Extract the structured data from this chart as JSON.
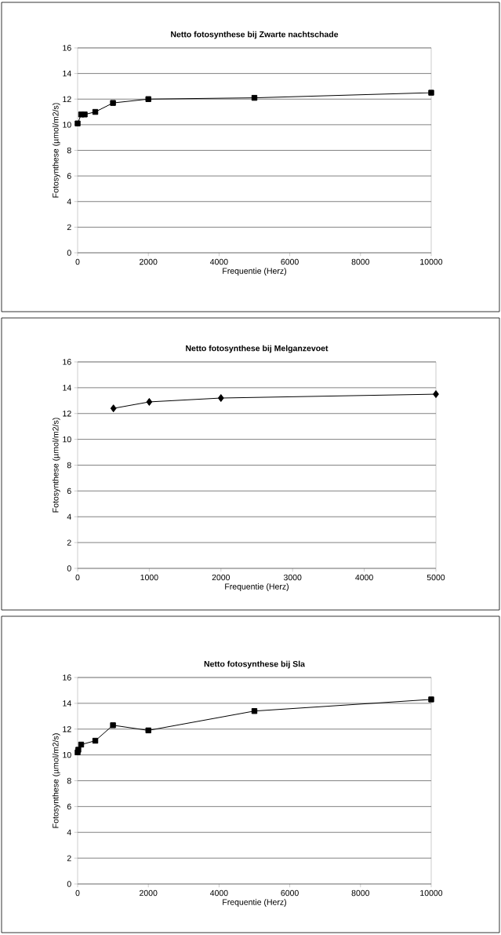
{
  "chart_data": [
    {
      "type": "line",
      "title": "Netto fotosynthese bij Zwarte nachtschade",
      "xlabel": "Frequentie (Herz)",
      "ylabel": "Fotosynthese (µmol/m2/s)",
      "x": [
        0,
        100,
        200,
        500,
        1000,
        2000,
        5000,
        10000
      ],
      "series": [
        {
          "color": "#000000",
          "values": [
            10.1,
            10.8,
            10.8,
            11.0,
            11.7,
            12.0,
            12.1,
            12.5
          ]
        }
      ],
      "xlim": [
        0,
        10000
      ],
      "xticks": [
        0,
        2000,
        4000,
        6000,
        8000,
        10000
      ],
      "ylim": [
        0,
        16
      ],
      "yticks": [
        0,
        2,
        4,
        6,
        8,
        10,
        12,
        14,
        16
      ],
      "grid": "y",
      "marker": "square"
    },
    {
      "type": "line",
      "title": "Netto fotosynthese bij Melganzevoet",
      "xlabel": "Frequentie (Herz)",
      "ylabel": "Fotosynthese (µmol/m2/s)",
      "x": [
        500,
        1000,
        2000,
        5000
      ],
      "series": [
        {
          "color": "#000000",
          "values": [
            12.4,
            12.9,
            13.2,
            13.5
          ]
        }
      ],
      "xlim": [
        0,
        5000
      ],
      "xticks": [
        0,
        1000,
        2000,
        3000,
        4000,
        5000
      ],
      "ylim": [
        0,
        16
      ],
      "yticks": [
        0,
        2,
        4,
        6,
        8,
        10,
        12,
        14,
        16
      ],
      "grid": "y",
      "marker": "diamond"
    },
    {
      "type": "line",
      "title": "Netto fotosynthese bij Sla",
      "xlabel": "Frequentie (Herz)",
      "ylabel": "Fotosynthese (µmol/m2/s)",
      "x": [
        0,
        20,
        100,
        500,
        1000,
        2000,
        5000,
        10000
      ],
      "series": [
        {
          "color": "#000000",
          "values": [
            10.2,
            10.4,
            10.8,
            11.1,
            12.3,
            11.9,
            13.4,
            14.3
          ]
        }
      ],
      "xlim": [
        0,
        10000
      ],
      "xticks": [
        0,
        2000,
        4000,
        6000,
        8000,
        10000
      ],
      "ylim": [
        0,
        16
      ],
      "yticks": [
        0,
        2,
        4,
        6,
        8,
        10,
        12,
        14,
        16
      ],
      "grid": "y",
      "marker": "square"
    }
  ]
}
